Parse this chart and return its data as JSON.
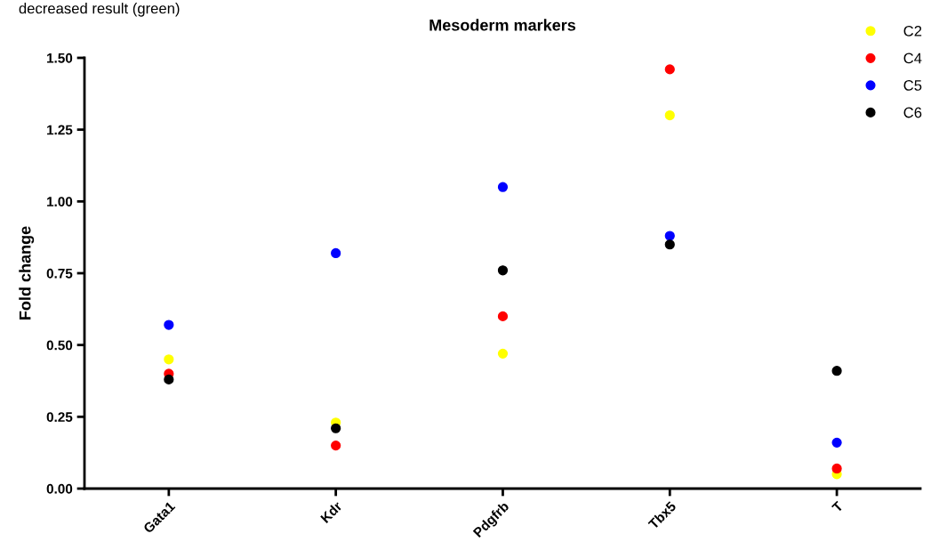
{
  "chart_data": {
    "type": "scatter",
    "title": "Mesoderm markers",
    "ylabel": "Fold change",
    "annotations": [
      "decreased result (green)"
    ],
    "categories": [
      "Gata1",
      "Kdr",
      "Pdgfrb",
      "Tbx5",
      "T"
    ],
    "series": [
      {
        "name": "C2",
        "color": "#ffff00",
        "values": [
          0.45,
          0.23,
          0.47,
          1.3,
          0.05
        ]
      },
      {
        "name": "C4",
        "color": "#ff0000",
        "values": [
          0.4,
          0.15,
          0.6,
          1.46,
          0.07
        ]
      },
      {
        "name": "C5",
        "color": "#0000ff",
        "values": [
          0.57,
          0.82,
          1.05,
          0.88,
          0.16
        ]
      },
      {
        "name": "C6",
        "color": "#000000",
        "values": [
          0.38,
          0.21,
          0.76,
          0.85,
          0.41
        ]
      }
    ],
    "ylim": [
      0,
      1.5
    ],
    "yticks": [
      {
        "value": 0,
        "label": "0.00"
      },
      {
        "value": 0.25,
        "label": "0.25"
      },
      {
        "value": 0.5,
        "label": "0.50"
      },
      {
        "value": 0.75,
        "label": "0.75"
      },
      {
        "value": 1.0,
        "label": "1.00"
      },
      {
        "value": 1.25,
        "label": "1.25"
      },
      {
        "value": 1.5,
        "label": "1.50"
      }
    ],
    "grid": false,
    "legend": "top right",
    "marker": "circle"
  }
}
